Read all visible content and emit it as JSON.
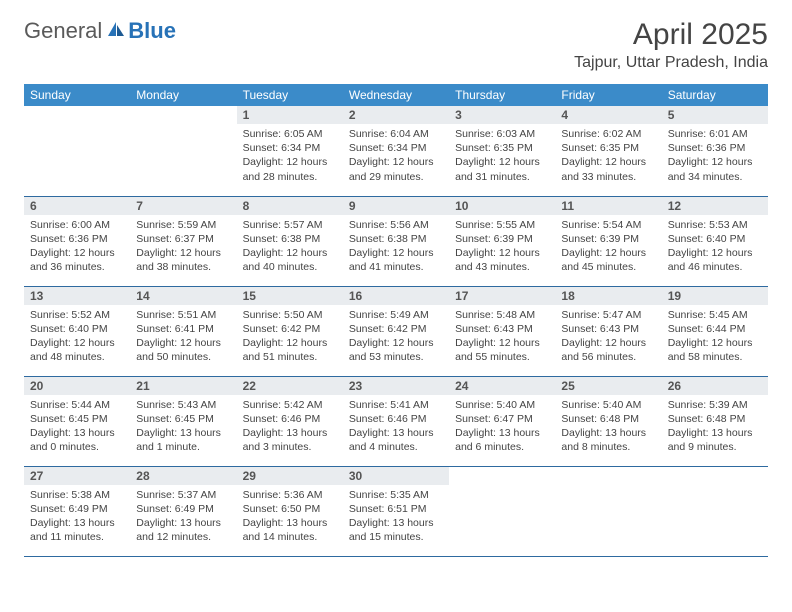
{
  "logo": {
    "general": "General",
    "blue": "Blue"
  },
  "title": "April 2025",
  "location": "Tajpur, Uttar Pradesh, India",
  "colors": {
    "header_bg": "#3b8bc9",
    "header_text": "#ffffff",
    "daynum_bg": "#e9ecef",
    "row_border": "#2e6aa0",
    "logo_blue": "#2772b7",
    "logo_gray": "#5a5a5a"
  },
  "days_of_week": [
    "Sunday",
    "Monday",
    "Tuesday",
    "Wednesday",
    "Thursday",
    "Friday",
    "Saturday"
  ],
  "first_weekday_index": 2,
  "days": [
    {
      "n": 1,
      "sunrise": "6:05 AM",
      "sunset": "6:34 PM",
      "daylight": "12 hours and 28 minutes."
    },
    {
      "n": 2,
      "sunrise": "6:04 AM",
      "sunset": "6:34 PM",
      "daylight": "12 hours and 29 minutes."
    },
    {
      "n": 3,
      "sunrise": "6:03 AM",
      "sunset": "6:35 PM",
      "daylight": "12 hours and 31 minutes."
    },
    {
      "n": 4,
      "sunrise": "6:02 AM",
      "sunset": "6:35 PM",
      "daylight": "12 hours and 33 minutes."
    },
    {
      "n": 5,
      "sunrise": "6:01 AM",
      "sunset": "6:36 PM",
      "daylight": "12 hours and 34 minutes."
    },
    {
      "n": 6,
      "sunrise": "6:00 AM",
      "sunset": "6:36 PM",
      "daylight": "12 hours and 36 minutes."
    },
    {
      "n": 7,
      "sunrise": "5:59 AM",
      "sunset": "6:37 PM",
      "daylight": "12 hours and 38 minutes."
    },
    {
      "n": 8,
      "sunrise": "5:57 AM",
      "sunset": "6:38 PM",
      "daylight": "12 hours and 40 minutes."
    },
    {
      "n": 9,
      "sunrise": "5:56 AM",
      "sunset": "6:38 PM",
      "daylight": "12 hours and 41 minutes."
    },
    {
      "n": 10,
      "sunrise": "5:55 AM",
      "sunset": "6:39 PM",
      "daylight": "12 hours and 43 minutes."
    },
    {
      "n": 11,
      "sunrise": "5:54 AM",
      "sunset": "6:39 PM",
      "daylight": "12 hours and 45 minutes."
    },
    {
      "n": 12,
      "sunrise": "5:53 AM",
      "sunset": "6:40 PM",
      "daylight": "12 hours and 46 minutes."
    },
    {
      "n": 13,
      "sunrise": "5:52 AM",
      "sunset": "6:40 PM",
      "daylight": "12 hours and 48 minutes."
    },
    {
      "n": 14,
      "sunrise": "5:51 AM",
      "sunset": "6:41 PM",
      "daylight": "12 hours and 50 minutes."
    },
    {
      "n": 15,
      "sunrise": "5:50 AM",
      "sunset": "6:42 PM",
      "daylight": "12 hours and 51 minutes."
    },
    {
      "n": 16,
      "sunrise": "5:49 AM",
      "sunset": "6:42 PM",
      "daylight": "12 hours and 53 minutes."
    },
    {
      "n": 17,
      "sunrise": "5:48 AM",
      "sunset": "6:43 PM",
      "daylight": "12 hours and 55 minutes."
    },
    {
      "n": 18,
      "sunrise": "5:47 AM",
      "sunset": "6:43 PM",
      "daylight": "12 hours and 56 minutes."
    },
    {
      "n": 19,
      "sunrise": "5:45 AM",
      "sunset": "6:44 PM",
      "daylight": "12 hours and 58 minutes."
    },
    {
      "n": 20,
      "sunrise": "5:44 AM",
      "sunset": "6:45 PM",
      "daylight": "13 hours and 0 minutes."
    },
    {
      "n": 21,
      "sunrise": "5:43 AM",
      "sunset": "6:45 PM",
      "daylight": "13 hours and 1 minute."
    },
    {
      "n": 22,
      "sunrise": "5:42 AM",
      "sunset": "6:46 PM",
      "daylight": "13 hours and 3 minutes."
    },
    {
      "n": 23,
      "sunrise": "5:41 AM",
      "sunset": "6:46 PM",
      "daylight": "13 hours and 4 minutes."
    },
    {
      "n": 24,
      "sunrise": "5:40 AM",
      "sunset": "6:47 PM",
      "daylight": "13 hours and 6 minutes."
    },
    {
      "n": 25,
      "sunrise": "5:40 AM",
      "sunset": "6:48 PM",
      "daylight": "13 hours and 8 minutes."
    },
    {
      "n": 26,
      "sunrise": "5:39 AM",
      "sunset": "6:48 PM",
      "daylight": "13 hours and 9 minutes."
    },
    {
      "n": 27,
      "sunrise": "5:38 AM",
      "sunset": "6:49 PM",
      "daylight": "13 hours and 11 minutes."
    },
    {
      "n": 28,
      "sunrise": "5:37 AM",
      "sunset": "6:49 PM",
      "daylight": "13 hours and 12 minutes."
    },
    {
      "n": 29,
      "sunrise": "5:36 AM",
      "sunset": "6:50 PM",
      "daylight": "13 hours and 14 minutes."
    },
    {
      "n": 30,
      "sunrise": "5:35 AM",
      "sunset": "6:51 PM",
      "daylight": "13 hours and 15 minutes."
    }
  ],
  "labels": {
    "sunrise": "Sunrise:",
    "sunset": "Sunset:",
    "daylight": "Daylight:"
  }
}
